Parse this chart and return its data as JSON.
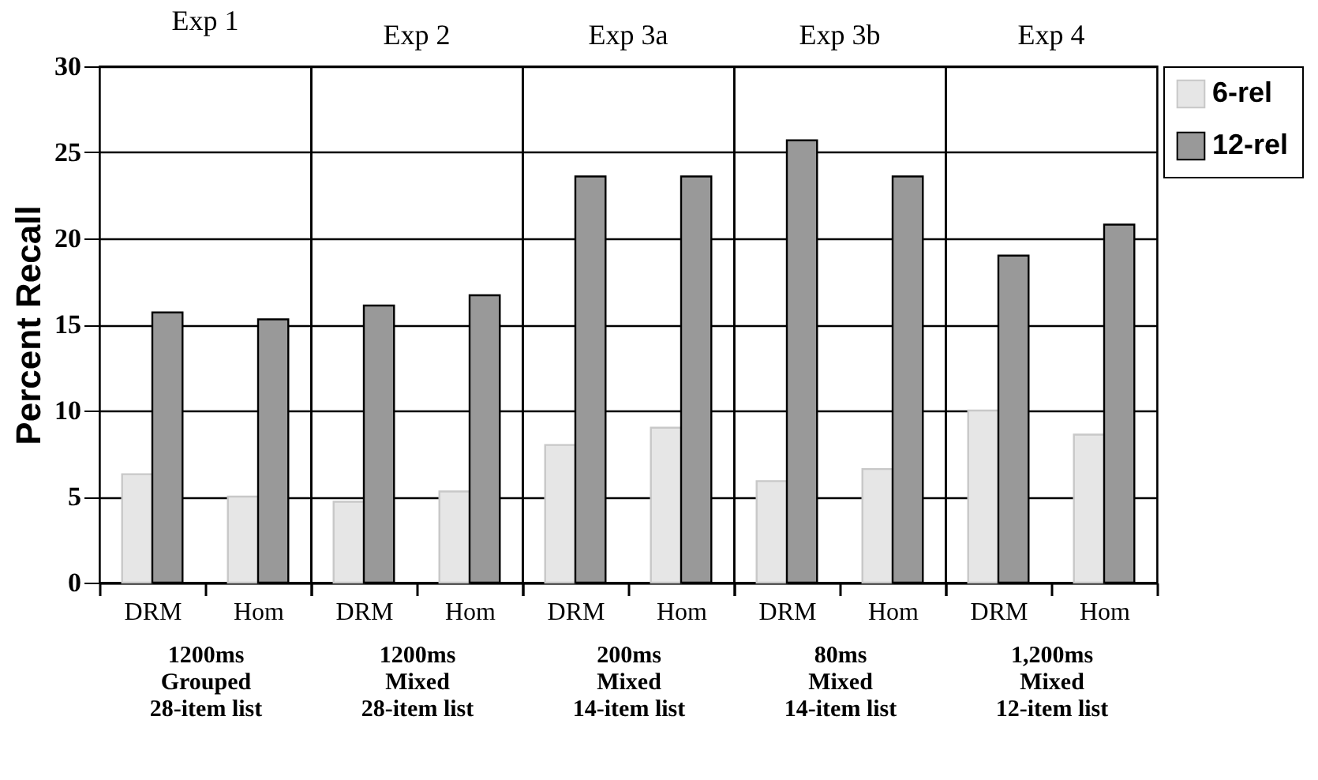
{
  "chart_data": [
    {
      "type": "bar",
      "title": "Exp 1",
      "xlabel": "1200ms\nGrouped\n28-item list",
      "ylabel": "Percent Recall",
      "categories": [
        "DRM",
        "Hom"
      ],
      "series": [
        {
          "name": "6-rel",
          "color": "#e6e6e6",
          "values": [
            6.3,
            5.0
          ]
        },
        {
          "name": "12-rel",
          "color": "#999999",
          "values": [
            15.7,
            15.3
          ]
        }
      ],
      "ylim": [
        0,
        30
      ],
      "yticks": [
        0,
        5,
        10,
        15,
        20,
        25,
        30
      ],
      "grid": "y",
      "legend": "top right"
    },
    {
      "type": "bar",
      "title": "Exp 2",
      "xlabel": "1200ms\nMixed\n28-item list",
      "categories": [
        "DRM",
        "Hom"
      ],
      "series": [
        {
          "color": "#e6e6e6",
          "values": [
            4.7,
            5.3
          ]
        },
        {
          "color": "#999999",
          "values": [
            16.1,
            16.7
          ]
        }
      ],
      "ylim": [
        0,
        30
      ],
      "yticks": [
        0,
        5,
        10,
        15,
        20,
        25,
        30
      ],
      "grid": "y",
      "tick_labels": "x"
    },
    {
      "type": "bar",
      "title": "Exp 3a",
      "xlabel": "200ms\nMixed\n14-item list",
      "categories": [
        "DRM",
        "Hom"
      ],
      "series": [
        {
          "color": "#e6e6e6",
          "values": [
            8.0,
            9.0
          ]
        },
        {
          "color": "#999999",
          "values": [
            23.6,
            23.6
          ]
        }
      ],
      "ylim": [
        0,
        30
      ],
      "yticks": [
        0,
        5,
        10,
        15,
        20,
        25,
        30
      ],
      "grid": "y",
      "tick_labels": "x"
    },
    {
      "type": "bar",
      "title": "Exp 3b",
      "xlabel": "80ms\nMixed\n14-item list",
      "categories": [
        "DRM",
        "Hom"
      ],
      "series": [
        {
          "color": "#e6e6e6",
          "values": [
            5.9,
            6.6
          ]
        },
        {
          "color": "#999999",
          "values": [
            25.7,
            23.6
          ]
        }
      ],
      "ylim": [
        0,
        30
      ],
      "yticks": [
        0,
        5,
        10,
        15,
        20,
        25,
        30
      ],
      "grid": "y",
      "tick_labels": "x"
    },
    {
      "type": "bar",
      "title": "Exp 4",
      "xlabel": "1,200ms\nMixed\n12-item list",
      "categories": [
        "DRM",
        "Hom"
      ],
      "series": [
        {
          "color": "#e6e6e6",
          "values": [
            10.0,
            8.6
          ]
        },
        {
          "color": "#999999",
          "values": [
            19.0,
            20.8
          ]
        }
      ],
      "ylim": [
        0,
        30
      ],
      "yticks": [
        0,
        5,
        10,
        15,
        20,
        25,
        30
      ],
      "grid": "y",
      "tick_labels": "x"
    }
  ]
}
